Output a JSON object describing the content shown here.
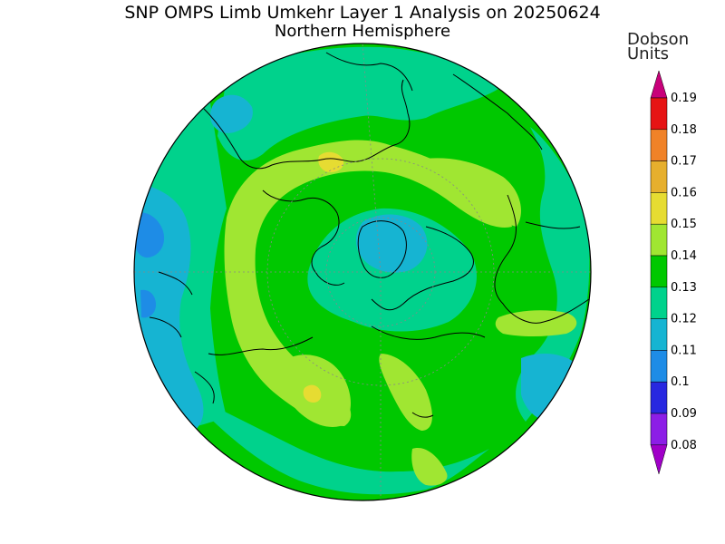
{
  "title": "SNP OMPS Limb Umkehr Layer 1 Analysis on 20250624",
  "subtitle": "Northern Hemisphere",
  "colorbar": {
    "units_line1": "Dobson",
    "units_line2": "Units",
    "levels": [
      "0.08",
      "0.09",
      "0.1",
      "0.11",
      "0.12",
      "0.13",
      "0.14",
      "0.15",
      "0.16",
      "0.17",
      "0.18",
      "0.19"
    ],
    "colors": [
      "#a000c8",
      "#8c1ee6",
      "#2828e0",
      "#1e8ce6",
      "#16b4d2",
      "#00d28c",
      "#00c800",
      "#a0e632",
      "#e6dc32",
      "#e6af2d",
      "#f08228",
      "#e61414",
      "#c8007a"
    ]
  },
  "map": {
    "projection": "polar stereographic",
    "hemisphere": "north",
    "land_color": "#000000",
    "grid_color": "#888888"
  }
}
